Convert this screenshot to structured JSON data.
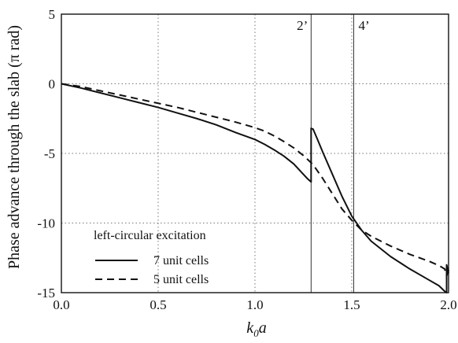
{
  "chart_data": {
    "type": "line",
    "xlabel_main": "k",
    "xlabel_sub": "0",
    "xlabel_tail": "a",
    "ylabel": "Phase advance through the slab (π rad)",
    "xlim": [
      0.0,
      2.0
    ],
    "ylim": [
      -15,
      5
    ],
    "xticks": [
      "0.0",
      "0.5",
      "1.0",
      "1.5",
      "2.0"
    ],
    "xtick_values": [
      0.0,
      0.5,
      1.0,
      1.5,
      2.0
    ],
    "yticks": [
      "5",
      "0",
      "-5",
      "-10",
      "-15"
    ],
    "ytick_values": [
      5,
      0,
      -5,
      -10,
      -15
    ],
    "grid": "dotted",
    "legend": {
      "title": "left-circular excitation",
      "placement": "bottom-left"
    },
    "annotations": [
      {
        "label": "2’",
        "x": 1.29
      },
      {
        "label": "4’",
        "x": 1.51
      }
    ],
    "series": [
      {
        "name": "7 unit cells",
        "style": "solid",
        "x": [
          0.0,
          0.1,
          0.2,
          0.3,
          0.4,
          0.5,
          0.6,
          0.7,
          0.8,
          0.9,
          1.0,
          1.05,
          1.1,
          1.15,
          1.2,
          1.24,
          1.27,
          1.29,
          1.29,
          1.3,
          1.32,
          1.35,
          1.4,
          1.45,
          1.5,
          1.55,
          1.6,
          1.7,
          1.8,
          1.9,
          1.95,
          1.98,
          1.99,
          1.99,
          2.0
        ],
        "y": [
          0.0,
          -0.3,
          -0.65,
          -1.0,
          -1.35,
          -1.7,
          -2.1,
          -2.5,
          -2.95,
          -3.5,
          -4.0,
          -4.35,
          -4.75,
          -5.2,
          -5.75,
          -6.35,
          -6.8,
          -7.05,
          -3.2,
          -3.25,
          -3.9,
          -4.9,
          -6.5,
          -8.1,
          -9.5,
          -10.5,
          -11.3,
          -12.4,
          -13.3,
          -14.1,
          -14.5,
          -14.9,
          -15.0,
          -13.0,
          -13.6
        ]
      },
      {
        "name": "5 unit cells",
        "style": "dashed",
        "x": [
          0.0,
          0.1,
          0.2,
          0.3,
          0.4,
          0.5,
          0.6,
          0.7,
          0.8,
          0.9,
          1.0,
          1.05,
          1.1,
          1.15,
          1.2,
          1.25,
          1.3,
          1.35,
          1.4,
          1.45,
          1.5,
          1.55,
          1.6,
          1.7,
          1.8,
          1.9,
          1.95,
          1.98,
          1.99,
          2.0,
          2.0
        ],
        "y": [
          0.0,
          -0.2,
          -0.5,
          -0.8,
          -1.1,
          -1.4,
          -1.7,
          -2.05,
          -2.4,
          -2.75,
          -3.15,
          -3.4,
          -3.75,
          -4.15,
          -4.6,
          -5.15,
          -5.8,
          -6.8,
          -7.9,
          -9.0,
          -9.8,
          -10.5,
          -10.95,
          -11.65,
          -12.25,
          -12.75,
          -13.05,
          -13.3,
          -13.8,
          -13.4,
          -13.6
        ]
      }
    ]
  }
}
